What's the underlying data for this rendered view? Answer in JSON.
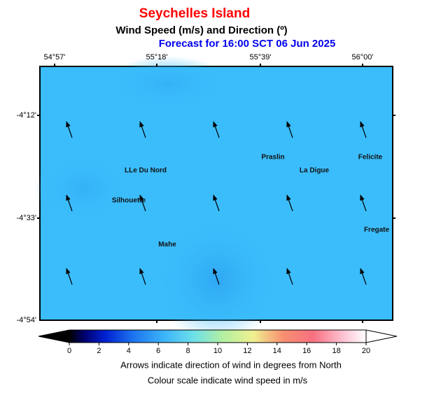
{
  "header": {
    "title": "Seychelles Island",
    "subtitle": "Wind Speed (m/s) and Direction (º)",
    "forecast": "Forecast for  16:00 SCT 06 Jun 2025"
  },
  "map": {
    "lon_labels": [
      "54°57'",
      "55°18'",
      "55°39'",
      "56°00'"
    ],
    "lat_labels": [
      "-4°12'",
      "-4°33'",
      "-4°54'"
    ],
    "places": [
      "LLe Du Nord",
      "Silhouette",
      "Mahe",
      "Praslin",
      "La Digue",
      "Felicite",
      "Fregate"
    ]
  },
  "colorbar": {
    "range": [
      0,
      20
    ],
    "ticks": [
      0,
      2,
      4,
      6,
      8,
      10,
      12,
      14,
      16,
      18,
      20
    ]
  },
  "notes": [
    "Arrows indicate direction of wind in degrees from North",
    "Colour scale indicate wind speed in m/s"
  ]
}
